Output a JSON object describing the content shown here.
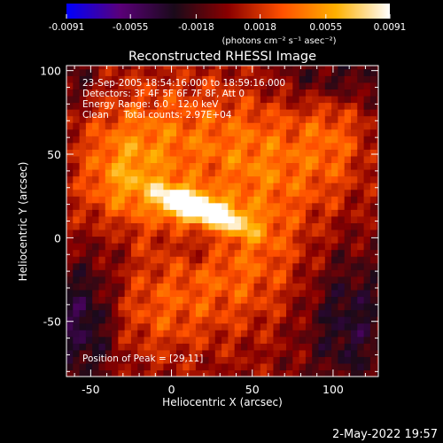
{
  "chart_data": {
    "type": "heatmap",
    "title": "Reconstructed RHESSI Image",
    "xlabel": "Heliocentric X (arcsec)",
    "ylabel": "Heliocentric Y (arcsec)",
    "xlim": [
      -65,
      128
    ],
    "ylim": [
      -83,
      103
    ],
    "x_ticks": [
      -50,
      0,
      50,
      100
    ],
    "y_ticks": [
      -50,
      0,
      50,
      100
    ],
    "colorbar": {
      "range": [
        -0.0091,
        0.0091
      ],
      "tick_values": [
        -0.0091,
        -0.0055,
        -0.0018,
        0.0018,
        0.0055,
        0.0091
      ],
      "tick_labels": [
        "-0.0091",
        "-0.0055",
        "-0.0018",
        "0.0018",
        "0.0055",
        "0.0091"
      ],
      "units_label": "(photons cm⁻² s⁻¹ asec⁻²)",
      "colors": [
        "#0000ff",
        "#5a0078",
        "#1a0a1a",
        "#8a0000",
        "#ff5000",
        "#ffb000",
        "#ffffff"
      ]
    },
    "annotations": [
      "23-Sep-2005 18:54:16.000 to 18:59:16.000",
      "Detectors: 3F 4F 5F 6F 7F 8F, Att 0",
      "Energy Range: 6.0 - 12.0 keV",
      "Clean     Total counts: 2.97E+04"
    ],
    "peak_label": "Position of Peak = [29,11]",
    "peak_position": [
      29,
      11
    ],
    "blobs": [
      {
        "x": 20,
        "y": 17,
        "sx": 20,
        "sy": 6,
        "angle": -20,
        "amp": 0.0095
      },
      {
        "x": 5,
        "y": 20,
        "sx": 10,
        "sy": 7,
        "angle": -10,
        "amp": 0.004
      },
      {
        "x": -30,
        "y": 30,
        "sx": 18,
        "sy": 25,
        "angle": 0,
        "amp": 0.004
      },
      {
        "x": 0,
        "y": 60,
        "sx": 35,
        "sy": 25,
        "angle": 0,
        "amp": 0.0035
      },
      {
        "x": 60,
        "y": 40,
        "sx": 25,
        "sy": 30,
        "angle": 0,
        "amp": 0.0035
      },
      {
        "x": 40,
        "y": -20,
        "sx": 30,
        "sy": 25,
        "angle": 0,
        "amp": 0.003
      },
      {
        "x": -10,
        "y": -45,
        "sx": 25,
        "sy": 20,
        "angle": 0,
        "amp": 0.0025
      },
      {
        "x": 100,
        "y": 60,
        "sx": 15,
        "sy": 25,
        "angle": 0,
        "amp": 0.0028
      },
      {
        "x": -55,
        "y": -50,
        "sx": 15,
        "sy": 25,
        "angle": 0,
        "amp": -0.0045
      },
      {
        "x": 110,
        "y": -50,
        "sx": 20,
        "sy": 30,
        "angle": 0,
        "amp": -0.0035
      },
      {
        "x": 100,
        "y": 95,
        "sx": 25,
        "sy": 12,
        "angle": 0,
        "amp": -0.003
      },
      {
        "x": -60,
        "y": 95,
        "sx": 10,
        "sy": 12,
        "angle": 0,
        "amp": -0.002
      },
      {
        "x": 20,
        "y": -5,
        "sx": 12,
        "sy": 8,
        "angle": 0,
        "amp": -0.0015
      },
      {
        "x": -35,
        "y": 0,
        "sx": 10,
        "sy": 15,
        "angle": 0,
        "amp": -0.0015
      }
    ]
  },
  "footer": {
    "timestamp": "2-May-2022 19:57"
  }
}
